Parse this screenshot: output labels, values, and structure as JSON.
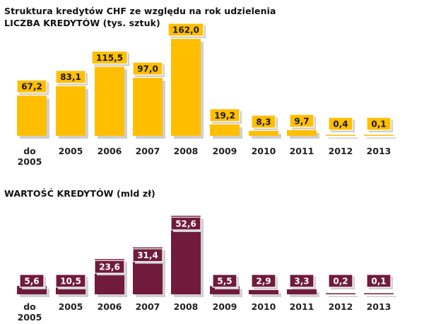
{
  "header": {
    "title_line1": "Struktura kredytów CHF  ze względu  na rok udzielenia",
    "title_line2": "LICZBA  KREDYTÓW  (tys. sztuk)",
    "title_line3": "WARTOŚĆ  KREDYTÓW  (mld  zł)"
  },
  "colors": {
    "count_bar": "#FFBF00",
    "count_label_bg": "#FFBF00",
    "count_label_text": "#1a1a1a",
    "value_bar": "#701B3B",
    "value_label_bg": "#701B3B",
    "value_label_text": "#ffffff",
    "shadow": "#cfcfcf"
  },
  "chart_data": [
    {
      "type": "bar",
      "title": "LICZBA  KREDYTÓW  (tys. sztuk)",
      "categories": [
        [
          "do",
          "2005"
        ],
        [
          "2005"
        ],
        [
          "2006"
        ],
        [
          "2007"
        ],
        [
          "2008"
        ],
        [
          "2009"
        ],
        [
          "2010"
        ],
        [
          "2011"
        ],
        [
          "2012"
        ],
        [
          "2013"
        ]
      ],
      "values": [
        67.2,
        83.1,
        115.5,
        97.0,
        162.0,
        19.2,
        8.3,
        9.7,
        0.4,
        0.1
      ],
      "labels": [
        "67,2",
        "83,1",
        "115,5",
        "97,0",
        "162,0",
        "19,2",
        "8,3",
        "9,7",
        "0,4",
        "0,1"
      ],
      "ylim": [
        0,
        162
      ],
      "grid": false,
      "legend": false
    },
    {
      "type": "bar",
      "title": "WARTOŚĆ  KREDYTÓW  (mld  zł)",
      "categories": [
        [
          "do",
          "2005"
        ],
        [
          "2005"
        ],
        [
          "2006"
        ],
        [
          "2007"
        ],
        [
          "2008"
        ],
        [
          "2009"
        ],
        [
          "2010"
        ],
        [
          "2011"
        ],
        [
          "2012"
        ],
        [
          "2013"
        ]
      ],
      "values": [
        5.6,
        10.5,
        23.6,
        31.4,
        52.6,
        5.5,
        2.9,
        3.3,
        0.2,
        0.1
      ],
      "labels": [
        "5,6",
        "10,5",
        "23,6",
        "31,4",
        "52,6",
        "5,5",
        "2,9",
        "3,3",
        "0,2",
        "0,1"
      ],
      "ylim": [
        0,
        52.6
      ],
      "grid": false,
      "legend": false
    }
  ]
}
